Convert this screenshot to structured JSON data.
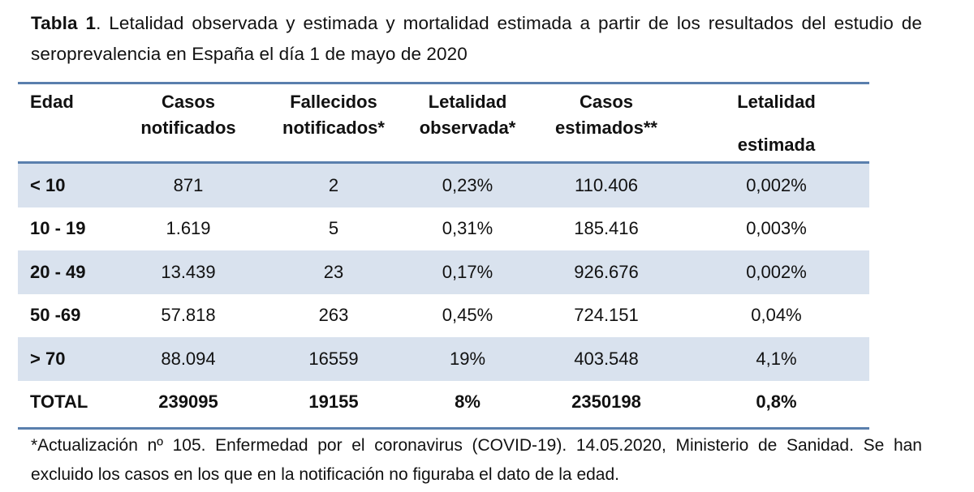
{
  "caption": {
    "label": "Tabla 1",
    "text": ". Letalidad observada y estimada y mortalidad estimada a partir de los resultados del estudio de seroprevalencia en España el día 1 de mayo de 2020"
  },
  "table": {
    "headers": [
      [
        "Edad"
      ],
      [
        "Casos",
        "notificados"
      ],
      [
        "Fallecidos",
        "notificados*"
      ],
      [
        "Letalidad",
        "observada*"
      ],
      [
        "Casos",
        "estimados**"
      ],
      [
        "Letalidad",
        "estimada"
      ]
    ],
    "rows": [
      [
        "< 10",
        "871",
        "2",
        "0,23%",
        "110.406",
        "0,002%"
      ],
      [
        "10 - 19",
        "1.619",
        "5",
        "0,31%",
        "185.416",
        "0,003%"
      ],
      [
        "20 - 49",
        "13.439",
        "23",
        "0,17%",
        "926.676",
        "0,002%"
      ],
      [
        "50 -69",
        "57.818",
        "263",
        "0,45%",
        "724.151",
        "0,04%"
      ],
      [
        "> 70",
        "88.094",
        "16559",
        "19%",
        "403.548",
        "4,1%"
      ],
      [
        "TOTAL",
        "239095",
        "19155",
        "8%",
        "2350198",
        "0,8%"
      ]
    ],
    "shade_color": "#d9e2ee",
    "rule_color": "#5a7fad"
  },
  "footnote": "*Actualización nº 105. Enfermedad por el coronavirus (COVID-19). 14.05.2020, Ministerio de Sanidad. Se han excluido los casos en los que en la notificación no figuraba el dato de la edad."
}
